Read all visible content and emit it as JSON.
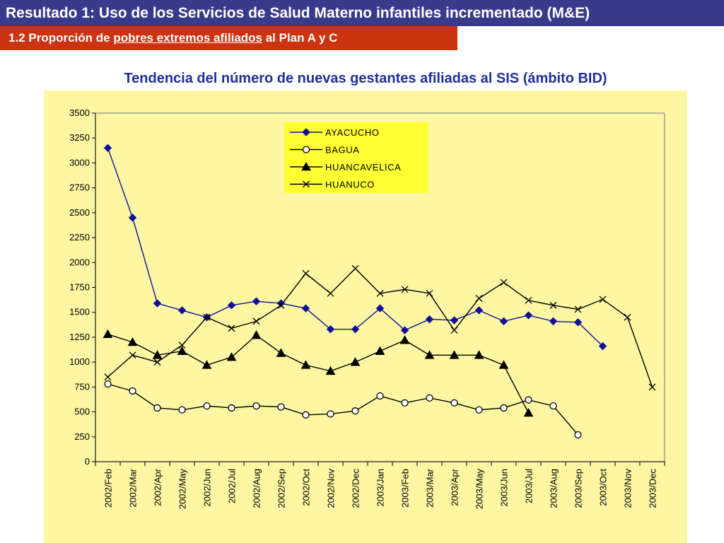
{
  "header": {
    "title": "Resultado 1: Uso de los Servicios de Salud Materno infantiles incrementado (M&E)",
    "subtitle_prefix": "1.2 Proporción de ",
    "subtitle_link": "pobres extremos afiliados",
    "subtitle_suffix": " al Plan A y C"
  },
  "colors": {
    "header_bg": "#3a3a8c",
    "subheader_bg": "#cc3311",
    "chart_title": "#1f2f99",
    "panel_bg": "#fdf6a3",
    "plot_bg": "#fdf6a3",
    "legend_bg": "#ffff33",
    "ayacucho": "#10109a",
    "others": "#000000"
  },
  "chart_data": {
    "type": "line",
    "title": "Tendencia del número de nuevas gestantes afiliadas al SIS (ámbito BID)",
    "xlabel": "",
    "ylabel": "",
    "ylim": [
      0,
      3500
    ],
    "yticks": [
      0,
      250,
      500,
      750,
      1000,
      1250,
      1500,
      1750,
      2000,
      2250,
      2500,
      2750,
      3000,
      3250,
      3500
    ],
    "grid": false,
    "legend_position": "top-center",
    "categories": [
      "2002/Feb",
      "2002/Mar",
      "2002/Apr",
      "2002/May",
      "2002/Jun",
      "2002/Jul",
      "2002/Aug",
      "2002/Sep",
      "2002/Oct",
      "2002/Nov",
      "2002/Dec",
      "2003/Jan",
      "2003/Feb",
      "2003/Mar",
      "2003/Apr",
      "2003/May",
      "2003/Jun",
      "2003/Jul",
      "2003/Aug",
      "2003/Sep",
      "2003/Oct",
      "2003/Nov",
      "2003/Dec"
    ],
    "series": [
      {
        "name": "AYACUCHO",
        "marker": "diamond",
        "color": "#10109a",
        "values": [
          3150,
          2450,
          1590,
          1520,
          1450,
          1570,
          1610,
          1590,
          1540,
          1330,
          1330,
          1540,
          1320,
          1430,
          1420,
          1520,
          1410,
          1470,
          1410,
          1400,
          1160,
          null,
          null
        ]
      },
      {
        "name": "BAGUA",
        "marker": "circle",
        "color": "#000000",
        "values": [
          780,
          710,
          540,
          520,
          560,
          540,
          560,
          550,
          470,
          480,
          510,
          660,
          590,
          640,
          590,
          520,
          540,
          620,
          560,
          270,
          null,
          null,
          null
        ]
      },
      {
        "name": "HUANCAVELICA",
        "marker": "triangle",
        "color": "#000000",
        "values": [
          1280,
          1200,
          1070,
          1110,
          970,
          1050,
          1270,
          1090,
          970,
          910,
          1000,
          1110,
          1220,
          1070,
          1070,
          1070,
          970,
          490,
          null,
          null,
          null,
          null,
          null
        ]
      },
      {
        "name": "HUANUCO",
        "marker": "x",
        "color": "#000000",
        "values": [
          850,
          1070,
          1000,
          1170,
          1450,
          1340,
          1410,
          1570,
          1890,
          1690,
          1940,
          1690,
          1730,
          1690,
          1320,
          1640,
          1800,
          1620,
          1570,
          1530,
          1630,
          1450,
          750
        ]
      }
    ]
  }
}
